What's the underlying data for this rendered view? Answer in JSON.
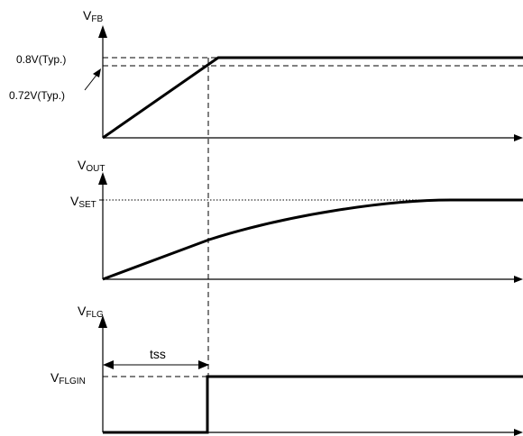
{
  "panels": {
    "fb": {
      "axis_label": {
        "main": "V",
        "sub": "FB"
      },
      "level_high": "0.8V(Typ.)",
      "level_low": "0.72V(Typ.)"
    },
    "out": {
      "axis_label": {
        "main": "V",
        "sub": "OUT"
      },
      "level_set": {
        "main": "V",
        "sub": "SET"
      }
    },
    "flg": {
      "axis_label": {
        "main": "V",
        "sub": "FLG"
      },
      "level_in": {
        "main": "V",
        "sub": "FLGIN"
      },
      "interval_label": "tss"
    }
  }
}
